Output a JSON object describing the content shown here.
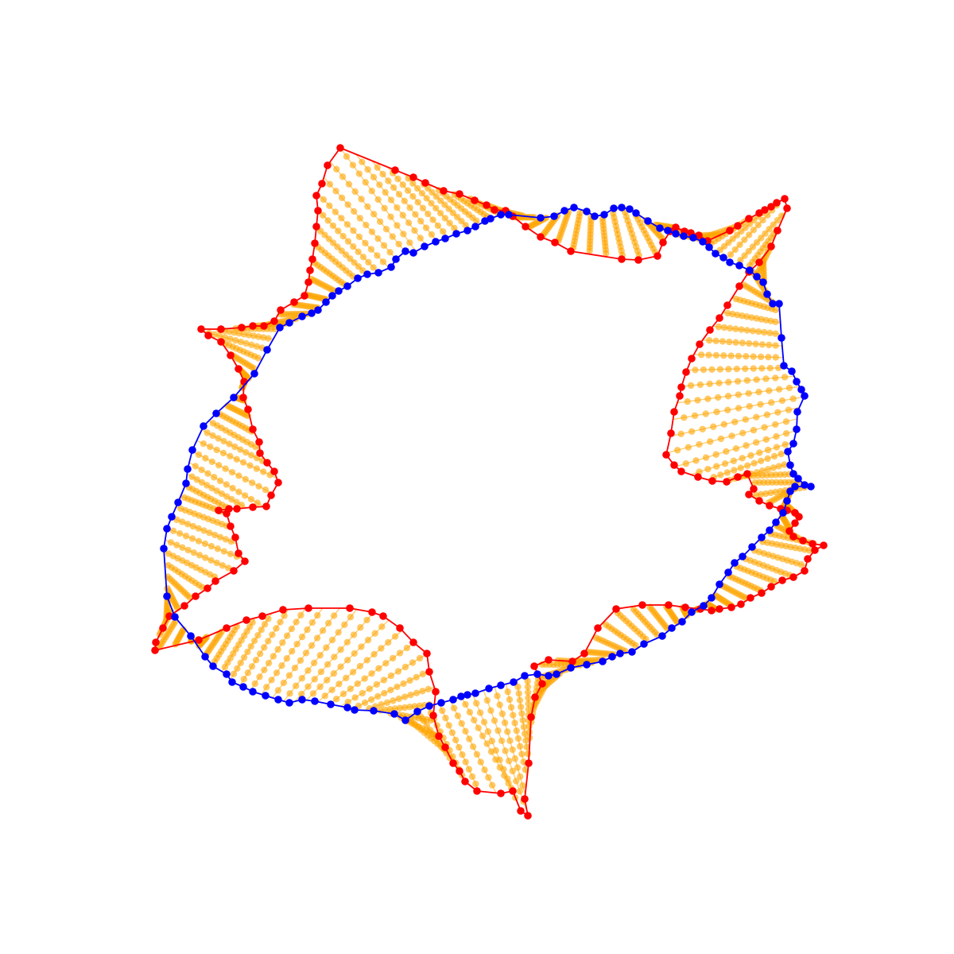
{
  "chart_data": {
    "type": "contour-interpolation",
    "title": "",
    "axes": "off",
    "colors": {
      "source": "#ff0000",
      "target": "#0000ff",
      "intermediate": "#ffa500"
    },
    "intermediate_steps": 12,
    "source_contour": [
      [
        428,
        186
      ],
      [
        497,
        214
      ],
      [
        520,
        223
      ],
      [
        535,
        230
      ],
      [
        558,
        240
      ],
      [
        578,
        244
      ],
      [
        597,
        252
      ],
      [
        612,
        258
      ],
      [
        622,
        264
      ],
      [
        636,
        265
      ],
      [
        645,
        272
      ],
      [
        661,
        285
      ],
      [
        680,
        298
      ],
      [
        698,
        305
      ],
      [
        718,
        316
      ],
      [
        782,
        326
      ],
      [
        803,
        327
      ],
      [
        827,
        322
      ],
      [
        834,
        305
      ],
      [
        843,
        291
      ],
      [
        850,
        286
      ],
      [
        861,
        291
      ],
      [
        869,
        293
      ],
      [
        879,
        296
      ],
      [
        890,
        303
      ],
      [
        918,
        290
      ],
      [
        928,
        284
      ],
      [
        942,
        275
      ],
      [
        955,
        268
      ],
      [
        962,
        264
      ],
      [
        970,
        260
      ],
      [
        977,
        255
      ],
      [
        987,
        250
      ],
      [
        990,
        262
      ],
      [
        978,
        290
      ],
      [
        970,
        310
      ],
      [
        955,
        330
      ],
      [
        942,
        342
      ],
      [
        930,
        360
      ],
      [
        915,
        384
      ],
      [
        905,
        400
      ],
      [
        893,
        415
      ],
      [
        880,
        433
      ],
      [
        870,
        451
      ],
      [
        863,
        468
      ],
      [
        857,
        487
      ],
      [
        855,
        498
      ],
      [
        848,
        518
      ],
      [
        844,
        545
      ],
      [
        838,
        572
      ],
      [
        848,
        585
      ],
      [
        857,
        593
      ],
      [
        878,
        600
      ],
      [
        896,
        605
      ],
      [
        914,
        606
      ],
      [
        928,
        600
      ],
      [
        940,
        596
      ],
      [
        948,
        615
      ],
      [
        942,
        622
      ],
      [
        955,
        630
      ],
      [
        968,
        636
      ],
      [
        982,
        640
      ],
      [
        990,
        642
      ],
      [
        1000,
        645
      ],
      [
        1005,
        650
      ],
      [
        1000,
        658
      ],
      [
        993,
        668
      ],
      [
        998,
        675
      ],
      [
        1010,
        680
      ],
      [
        1022,
        684
      ],
      [
        1036,
        686
      ],
      [
        1025,
        692
      ],
      [
        1016,
        703
      ],
      [
        1012,
        718
      ],
      [
        998,
        726
      ],
      [
        984,
        730
      ],
      [
        970,
        738
      ],
      [
        958,
        746
      ],
      [
        944,
        752
      ],
      [
        932,
        760
      ],
      [
        920,
        764
      ],
      [
        905,
        766
      ],
      [
        895,
        768
      ],
      [
        881,
        766
      ],
      [
        862,
        764
      ],
      [
        841,
        761
      ],
      [
        808,
        761
      ],
      [
        775,
        766
      ],
      [
        752,
        790
      ],
      [
        735,
        822
      ],
      [
        720,
        832
      ],
      [
        690,
        830
      ],
      [
        672,
        838
      ],
      [
        682,
        860
      ],
      [
        673,
        877
      ],
      [
        668,
        902
      ],
      [
        665,
        960
      ],
      [
        660,
        1005
      ],
      [
        664,
        1026
      ],
      [
        655,
        1020
      ],
      [
        645,
        995
      ],
      [
        630,
        998
      ],
      [
        600,
        995
      ],
      [
        585,
        983
      ],
      [
        578,
        970
      ],
      [
        570,
        960
      ],
      [
        560,
        940
      ],
      [
        552,
        926
      ],
      [
        545,
        900
      ],
      [
        548,
        870
      ],
      [
        540,
        845
      ],
      [
        537,
        822
      ],
      [
        520,
        808
      ],
      [
        503,
        790
      ],
      [
        482,
        775
      ],
      [
        468,
        770
      ],
      [
        440,
        765
      ],
      [
        388,
        765
      ],
      [
        356,
        767
      ],
      [
        330,
        775
      ],
      [
        310,
        780
      ],
      [
        285,
        790
      ],
      [
        250,
        805
      ],
      [
        195,
        818
      ],
      [
        196,
        808
      ],
      [
        205,
        790
      ],
      [
        213,
        775
      ],
      [
        232,
        762
      ],
      [
        246,
        750
      ],
      [
        261,
        740
      ],
      [
        271,
        731
      ],
      [
        294,
        718
      ],
      [
        308,
        706
      ],
      [
        300,
        696
      ],
      [
        296,
        676
      ],
      [
        290,
        662
      ],
      [
        285,
        646
      ],
      [
        275,
        642
      ],
      [
        288,
        640
      ],
      [
        298,
        640
      ],
      [
        318,
        638
      ],
      [
        335,
        637
      ],
      [
        341,
        623
      ],
      [
        350,
        607
      ],
      [
        345,
        593
      ],
      [
        336,
        582
      ],
      [
        327,
        570
      ],
      [
        326,
        556
      ],
      [
        318,
        540
      ],
      [
        312,
        515
      ],
      [
        306,
        500
      ],
      [
        307,
        480
      ],
      [
        300,
        464
      ],
      [
        290,
        447
      ],
      [
        278,
        430
      ],
      [
        262,
        422
      ],
      [
        253,
        414
      ],
      [
        278,
        414
      ],
      [
        304,
        412
      ],
      [
        318,
        410
      ],
      [
        332,
        410
      ],
      [
        345,
        404
      ],
      [
        353,
        390
      ],
      [
        370,
        380
      ],
      [
        383,
        372
      ],
      [
        388,
        355
      ],
      [
        390,
        340
      ],
      [
        393,
        326
      ],
      [
        396,
        306
      ],
      [
        398,
        285
      ],
      [
        400,
        265
      ],
      [
        398,
        246
      ],
      [
        405,
        231
      ],
      [
        412,
        208
      ]
    ],
    "target_contour": [
      [
        617,
        275
      ],
      [
        630,
        270
      ],
      [
        640,
        270
      ],
      [
        680,
        274
      ],
      [
        697,
        272
      ],
      [
        710,
        265
      ],
      [
        722,
        261
      ],
      [
        738,
        266
      ],
      [
        748,
        272
      ],
      [
        760,
        270
      ],
      [
        772,
        262
      ],
      [
        782,
        261
      ],
      [
        792,
        263
      ],
      [
        800,
        268
      ],
      [
        815,
        278
      ],
      [
        830,
        287
      ],
      [
        840,
        290
      ],
      [
        850,
        294
      ],
      [
        860,
        297
      ],
      [
        872,
        299
      ],
      [
        884,
        304
      ],
      [
        892,
        311
      ],
      [
        900,
        319
      ],
      [
        910,
        324
      ],
      [
        918,
        330
      ],
      [
        930,
        334
      ],
      [
        943,
        340
      ],
      [
        952,
        348
      ],
      [
        960,
        355
      ],
      [
        965,
        370
      ],
      [
        972,
        382
      ],
      [
        980,
        382
      ],
      [
        983,
        425
      ],
      [
        986,
        460
      ],
      [
        996,
        467
      ],
      [
        1002,
        480
      ],
      [
        1008,
        490
      ],
      [
        1012,
        498
      ],
      [
        1003,
        518
      ],
      [
        1002,
        540
      ],
      [
        998,
        558
      ],
      [
        991,
        568
      ],
      [
        994,
        585
      ],
      [
        998,
        596
      ],
      [
        1004,
        602
      ],
      [
        1012,
        610
      ],
      [
        1020,
        612
      ],
      [
        1000,
        612
      ],
      [
        994,
        618
      ],
      [
        990,
        630
      ],
      [
        985,
        645
      ],
      [
        976,
        657
      ],
      [
        968,
        667
      ],
      [
        958,
        676
      ],
      [
        946,
        688
      ],
      [
        934,
        700
      ],
      [
        924,
        708
      ],
      [
        916,
        720
      ],
      [
        905,
        735
      ],
      [
        895,
        752
      ],
      [
        885,
        762
      ],
      [
        870,
        770
      ],
      [
        858,
        782
      ],
      [
        845,
        790
      ],
      [
        833,
        800
      ],
      [
        810,
        810
      ],
      [
        795,
        820
      ],
      [
        780,
        822
      ],
      [
        770,
        826
      ],
      [
        758,
        832
      ],
      [
        738,
        836
      ],
      [
        718,
        840
      ],
      [
        700,
        848
      ],
      [
        690,
        850
      ],
      [
        676,
        848
      ],
      [
        660,
        850
      ],
      [
        646,
        858
      ],
      [
        630,
        862
      ],
      [
        615,
        866
      ],
      [
        598,
        872
      ],
      [
        588,
        874
      ],
      [
        580,
        876
      ],
      [
        570,
        880
      ],
      [
        555,
        884
      ],
      [
        540,
        888
      ],
      [
        525,
        895
      ],
      [
        510,
        906
      ],
      [
        496,
        898
      ],
      [
        470,
        894
      ],
      [
        446,
        893
      ],
      [
        437,
        890
      ],
      [
        416,
        886
      ],
      [
        396,
        882
      ],
      [
        380,
        880
      ],
      [
        364,
        884
      ],
      [
        350,
        880
      ],
      [
        334,
        875
      ],
      [
        318,
        870
      ],
      [
        306,
        864
      ],
      [
        292,
        858
      ],
      [
        285,
        848
      ],
      [
        268,
        838
      ],
      [
        258,
        826
      ],
      [
        240,
        800
      ],
      [
        220,
        776
      ],
      [
        210,
        750
      ],
      [
        206,
        690
      ],
      [
        210,
        665
      ],
      [
        216,
        650
      ],
      [
        224,
        632
      ],
      [
        234,
        608
      ],
      [
        236,
        590
      ],
      [
        242,
        566
      ],
      [
        256,
        536
      ],
      [
        272,
        520
      ],
      [
        294,
        500
      ],
      [
        320,
        470
      ],
      [
        336,
        440
      ],
      [
        352,
        412
      ],
      [
        364,
        406
      ],
      [
        380,
        398
      ],
      [
        392,
        394
      ],
      [
        400,
        390
      ],
      [
        410,
        380
      ],
      [
        418,
        372
      ],
      [
        426,
        366
      ],
      [
        437,
        360
      ],
      [
        450,
        350
      ],
      [
        462,
        345
      ],
      [
        476,
        343
      ],
      [
        492,
        336
      ],
      [
        498,
        326
      ],
      [
        510,
        316
      ],
      [
        520,
        318
      ],
      [
        534,
        310
      ],
      [
        548,
        304
      ],
      [
        560,
        300
      ],
      [
        574,
        294
      ],
      [
        588,
        290
      ],
      [
        598,
        285
      ],
      [
        610,
        278
      ]
    ]
  }
}
